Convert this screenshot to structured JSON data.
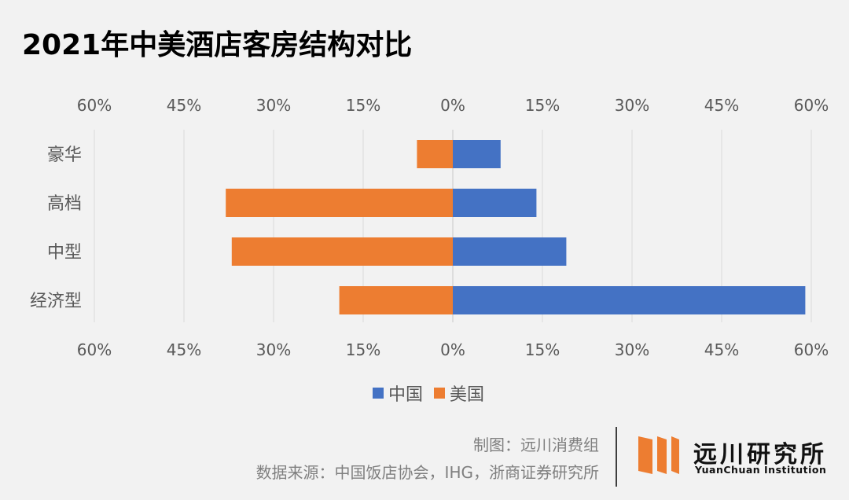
{
  "title": "2021年中美酒店客房结构对比",
  "chart_data": {
    "type": "bar",
    "orientation": "horizontal-diverging",
    "categories": [
      "豪华",
      "高档",
      "中型",
      "经济型"
    ],
    "series": [
      {
        "name": "中国",
        "color": "#4472c4",
        "side": "right",
        "values": [
          8,
          14,
          19,
          59
        ]
      },
      {
        "name": "美国",
        "color": "#ed7d31",
        "side": "left",
        "values": [
          6,
          38,
          37,
          19
        ]
      }
    ],
    "xlim": [
      -60,
      60
    ],
    "ticks": [
      -60,
      -45,
      -30,
      -15,
      0,
      15,
      30,
      45,
      60
    ],
    "tick_labels": [
      "60%",
      "45%",
      "30%",
      "15%",
      "0%",
      "15%",
      "30%",
      "45%",
      "60%"
    ],
    "tick_label_position": "top-and-bottom",
    "grid": "vertical",
    "legend_position": "bottom"
  },
  "footer": {
    "credit": "制图：远川消费组",
    "source": "数据来源：中国饭店协会，IHG，浙商证券研究所"
  },
  "logo": {
    "name_cn": "远川研究所",
    "name_en": "YuanChuan Institution",
    "color": "#ed7d31"
  }
}
